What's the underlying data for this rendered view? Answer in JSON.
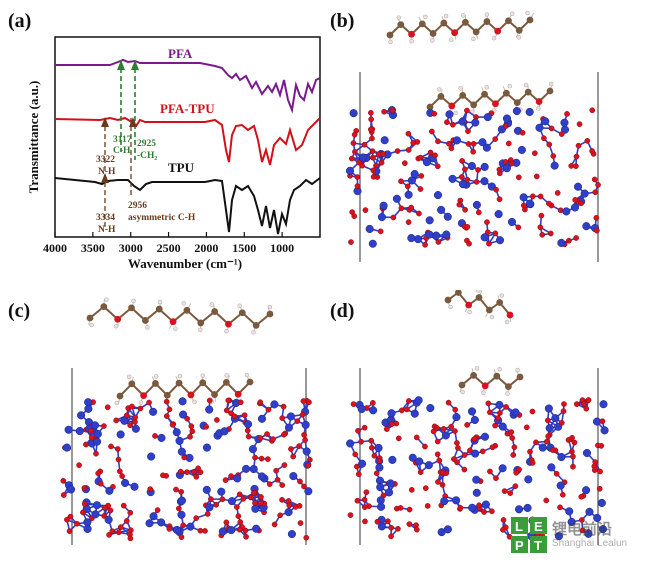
{
  "figure": {
    "panels": {
      "a": {
        "label": "(a)"
      },
      "b": {
        "label": "(b)"
      },
      "c": {
        "label": "(c)"
      },
      "d": {
        "label": "(d)"
      }
    }
  },
  "chart_data": {
    "type": "line",
    "xlabel": "Wavenumber (cm⁻¹)",
    "ylabel": "Transmittance (a.u.)",
    "xlim": [
      4000,
      500
    ],
    "xticks": [
      "4000",
      "3500",
      "3000",
      "2500",
      "2000",
      "1500",
      "1000"
    ],
    "series": [
      {
        "name": "PFA",
        "color": "#7a1a8c"
      },
      {
        "name": "PFA-TPU",
        "color": "#d3101a"
      },
      {
        "name": "TPU",
        "color": "#111111"
      }
    ],
    "annotations": {
      "pfa_ch": {
        "wavenumber": "3117",
        "bond": "C-H"
      },
      "pfa_ch2": {
        "wavenumber": "2925",
        "bond": "-CH₂"
      },
      "pfatpu_nh": {
        "wavenumber": "3322",
        "bond": "N-H"
      },
      "tpu_nh": {
        "wavenumber": "3334",
        "bond": "N-H"
      },
      "tpu_ch": {
        "wavenumber": "2956",
        "bond": "asymmetric C-H"
      }
    }
  },
  "watermark": {
    "logo_letters": "LEPT",
    "text_cn": "锂电前沿",
    "text_en": "Shanghai Lealun"
  },
  "colors": {
    "pfa": "#7a1a8c",
    "pfa_tpu": "#d3101a",
    "tpu": "#111111",
    "annot_green": "#2e7d32",
    "annot_brown": "#6b3a1e",
    "atom_blue": "#2f3fc8",
    "atom_red": "#d8121e",
    "atom_brown": "#7a5a3e",
    "atom_h": "#f2dede"
  }
}
